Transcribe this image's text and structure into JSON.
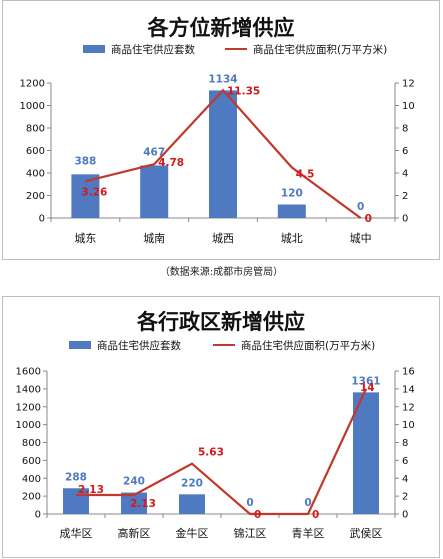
{
  "source_note": "（数据来源:成都市房管局）",
  "chart_data": [
    {
      "type": "bar",
      "title": "各方位新增供应",
      "categories": [
        "城东",
        "城南",
        "城西",
        "城北",
        "城中"
      ],
      "series": [
        {
          "name": "商品住宅供应套数",
          "type": "bar",
          "axis": "left",
          "values": [
            388,
            467,
            1134,
            120,
            0
          ]
        },
        {
          "name": "商品住宅供应面积(万平方米)",
          "type": "line",
          "axis": "right",
          "values": [
            3.26,
            4.78,
            11.35,
            4.5,
            0
          ]
        }
      ],
      "ylim": [
        0,
        1200
      ],
      "yticks": [
        0,
        200,
        400,
        600,
        800,
        1000,
        1200
      ],
      "y2lim": [
        0,
        12
      ],
      "y2ticks": [
        0,
        2,
        4,
        6,
        8,
        10,
        12
      ],
      "legend_position": "top",
      "colors": {
        "bar": "#4f7ac2",
        "line": "#c0392b",
        "line_label": "#d11a1a"
      }
    },
    {
      "type": "bar",
      "title": "各行政区新增供应",
      "categories": [
        "成华区",
        "高新区",
        "金牛区",
        "锦江区",
        "青羊区",
        "武侯区"
      ],
      "series": [
        {
          "name": "商品住宅供应套数",
          "type": "bar",
          "axis": "left",
          "values": [
            288,
            240,
            220,
            0,
            0,
            1361
          ]
        },
        {
          "name": "商品住宅供应面积(万平方米)",
          "type": "line",
          "axis": "right",
          "values": [
            2.13,
            2.13,
            5.63,
            0,
            0,
            14
          ]
        }
      ],
      "ylim": [
        0,
        1600
      ],
      "yticks": [
        0,
        200,
        400,
        600,
        800,
        1000,
        1200,
        1400,
        1600
      ],
      "y2lim": [
        0,
        16
      ],
      "y2ticks": [
        0,
        2,
        4,
        6,
        8,
        10,
        12,
        14,
        16
      ],
      "legend_position": "top",
      "colors": {
        "bar": "#4f7ac2",
        "line": "#c0392b",
        "line_label": "#d11a1a"
      }
    }
  ]
}
